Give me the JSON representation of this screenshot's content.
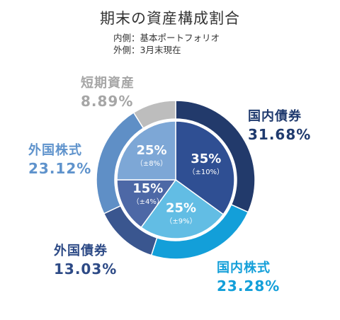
{
  "title": "期末の資産構成割合",
  "subtitle_lines": [
    "内側：基本ポートフォリオ",
    "外側：3月末現在"
  ],
  "chart_data": {
    "type": "pie",
    "title": "期末の資産構成割合",
    "outer": {
      "name": "3月末現在",
      "slices": [
        {
          "label": "国内債券",
          "value": 31.68,
          "display": "31.68%",
          "color": "#223a6b"
        },
        {
          "label": "国内株式",
          "value": 23.28,
          "display": "23.28%",
          "color": "#139fd9"
        },
        {
          "label": "外国債券",
          "value": 13.03,
          "display": "13.03%",
          "color": "#3a568f"
        },
        {
          "label": "外国株式",
          "value": 23.12,
          "display": "23.12%",
          "color": "#5f8fc6"
        },
        {
          "label": "短期資産",
          "value": 8.89,
          "display": "8.89%",
          "color": "#bdbdbd"
        }
      ]
    },
    "inner": {
      "name": "基本ポートフォリオ",
      "slices": [
        {
          "label": "国内債券",
          "value": 35,
          "display": "35%",
          "range": "（±10%）",
          "color": "#2f4f93"
        },
        {
          "label": "国内株式",
          "value": 25,
          "display": "25%",
          "range": "（±9%）",
          "color": "#62bde4"
        },
        {
          "label": "外国債券",
          "value": 15,
          "display": "15%",
          "range": "（±4%）",
          "color": "#4d68a6"
        },
        {
          "label": "外国株式",
          "value": 25,
          "display": "25%",
          "range": "（±8%）",
          "color": "#7da7d6"
        }
      ]
    }
  },
  "label_colors": {
    "国内債券": "#1f3a6e",
    "国内株式": "#139fd9",
    "外国債券": "#2d4a86",
    "外国株式": "#5f93cc",
    "短期資産": "#a6a6a6"
  }
}
